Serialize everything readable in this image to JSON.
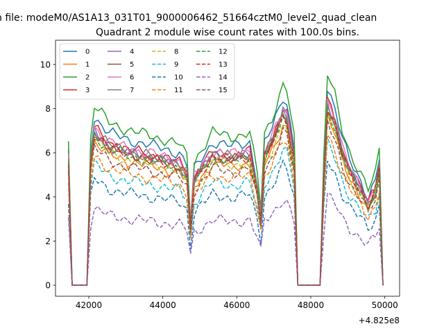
{
  "figure": {
    "suptitle": "n file: modeM0/AS1A13_031T01_9000006462_51664cztM0_level2_quad_clean"
  },
  "chart_data": {
    "type": "line",
    "title": "Quadrant 2 module wise count rates with 100.0s bins.",
    "xlabel": "",
    "ylabel": "",
    "x_offset_label": "+4.825e8",
    "xlim": [
      41100,
      50400
    ],
    "ylim": [
      -0.5,
      11.1
    ],
    "x_ticks": [
      42000,
      44000,
      46000,
      48000,
      50000
    ],
    "y_ticks": [
      0,
      2,
      4,
      6,
      8,
      10
    ],
    "grid": false,
    "legend_position": "upper-left",
    "legend_columns": 4,
    "x_unit_note": "x values are offsets from 4.825e8 as printed on the axis",
    "base_levels": [
      {
        "x": 41450,
        "y": 6.0
      },
      {
        "x": 41550,
        "y": 0
      },
      {
        "x": 41950,
        "y": 0
      },
      {
        "x": 42050,
        "y": 6.0
      },
      {
        "x": 42150,
        "y": 7.4
      },
      {
        "x": 42550,
        "y": 6.7
      },
      {
        "x": 43050,
        "y": 6.4
      },
      {
        "x": 43550,
        "y": 6.2
      },
      {
        "x": 44050,
        "y": 6.0
      },
      {
        "x": 44450,
        "y": 5.8
      },
      {
        "x": 44650,
        "y": 5.3
      },
      {
        "x": 44750,
        "y": 2.8
      },
      {
        "x": 44850,
        "y": 5.1
      },
      {
        "x": 45050,
        "y": 5.6
      },
      {
        "x": 45350,
        "y": 6.3
      },
      {
        "x": 45850,
        "y": 6.1
      },
      {
        "x": 46350,
        "y": 6.3
      },
      {
        "x": 46550,
        "y": 4.6
      },
      {
        "x": 46650,
        "y": 3.2
      },
      {
        "x": 46750,
        "y": 6.2
      },
      {
        "x": 46950,
        "y": 6.9
      },
      {
        "x": 47150,
        "y": 7.8
      },
      {
        "x": 47250,
        "y": 8.3
      },
      {
        "x": 47350,
        "y": 8.1
      },
      {
        "x": 47550,
        "y": 6.0
      },
      {
        "x": 47650,
        "y": 0
      },
      {
        "x": 48250,
        "y": 0
      },
      {
        "x": 48350,
        "y": 5.2
      },
      {
        "x": 48450,
        "y": 8.7
      },
      {
        "x": 48650,
        "y": 7.8
      },
      {
        "x": 48850,
        "y": 6.4
      },
      {
        "x": 49050,
        "y": 5.5
      },
      {
        "x": 49350,
        "y": 4.6
      },
      {
        "x": 49550,
        "y": 3.9
      },
      {
        "x": 49750,
        "y": 4.6
      },
      {
        "x": 49850,
        "y": 5.6
      },
      {
        "x": 49950,
        "y": 0
      }
    ],
    "series": [
      {
        "name": "0",
        "scale": 1.03,
        "color": "#1f77b4",
        "dash": "solid"
      },
      {
        "name": "1",
        "scale": 0.88,
        "color": "#ff7f0e",
        "dash": "solid"
      },
      {
        "name": "2",
        "scale": 1.1,
        "color": "#2ca02c",
        "dash": "solid"
      },
      {
        "name": "3",
        "scale": 0.96,
        "color": "#d62728",
        "dash": "solid"
      },
      {
        "name": "4",
        "scale": 0.94,
        "color": "#9467bd",
        "dash": "solid"
      },
      {
        "name": "5",
        "scale": 0.93,
        "color": "#8c564b",
        "dash": "solid"
      },
      {
        "name": "6",
        "scale": 0.97,
        "color": "#e377c2",
        "dash": "solid"
      },
      {
        "name": "7",
        "scale": 0.95,
        "color": "#7f7f7f",
        "dash": "solid"
      },
      {
        "name": "8",
        "scale": 0.89,
        "color": "#bcbd22",
        "dash": "dashed"
      },
      {
        "name": "9",
        "scale": 0.74,
        "color": "#17becf",
        "dash": "dashed"
      },
      {
        "name": "10",
        "scale": 0.65,
        "color": "#1f77b4",
        "dash": "dashed"
      },
      {
        "name": "11",
        "scale": 0.79,
        "color": "#ff7f0e",
        "dash": "dashed"
      },
      {
        "name": "12",
        "scale": 0.92,
        "color": "#2ca02c",
        "dash": "dashed"
      },
      {
        "name": "13",
        "scale": 0.93,
        "color": "#d62728",
        "dash": "dashed"
      },
      {
        "name": "14",
        "scale": 0.47,
        "color": "#9467bd",
        "dash": "dashed"
      },
      {
        "name": "15",
        "scale": 0.84,
        "color": "#8c564b",
        "dash": "dashed"
      }
    ]
  }
}
